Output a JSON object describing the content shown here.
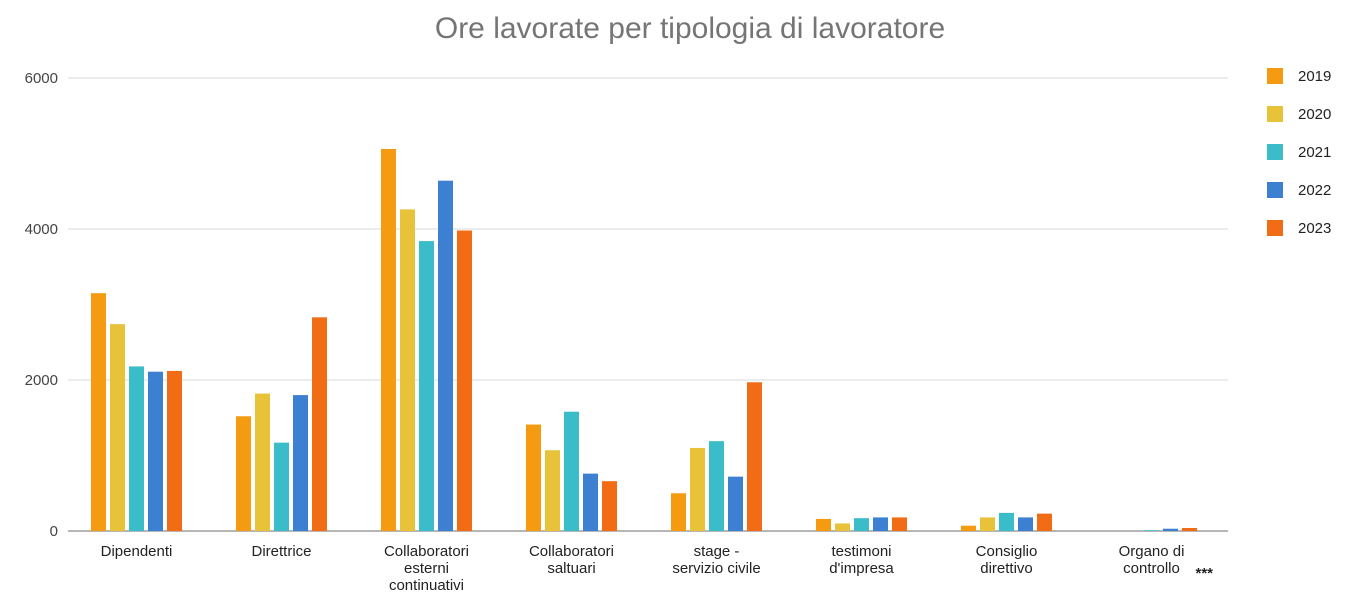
{
  "chart_data": {
    "type": "bar",
    "title": "Ore lavorate per tipologia di lavoratore",
    "categories": [
      [
        "Dipendenti"
      ],
      [
        "Direttrice"
      ],
      [
        "Collaboratori",
        "esterni",
        "continuativi"
      ],
      [
        "Collaboratori",
        "saltuari"
      ],
      [
        "stage -",
        "servizio civile"
      ],
      [
        "testimoni",
        "d'impresa"
      ],
      [
        "Consiglio",
        "direttivo"
      ],
      [
        "Organo di",
        "controllo"
      ]
    ],
    "annotation": "***",
    "ylim": [
      0,
      6000
    ],
    "yticks": [
      0,
      2000,
      4000,
      6000
    ],
    "grid": true,
    "legend_position": "right",
    "series": [
      {
        "name": "2019",
        "color": "#f59b12",
        "values": [
          3150,
          1520,
          5060,
          1410,
          500,
          160,
          70,
          0
        ]
      },
      {
        "name": "2020",
        "color": "#e8c33a",
        "values": [
          2740,
          1820,
          4260,
          1070,
          1100,
          100,
          180,
          0
        ]
      },
      {
        "name": "2021",
        "color": "#3bbcc9",
        "values": [
          2180,
          1170,
          3840,
          1580,
          1190,
          170,
          240,
          10
        ]
      },
      {
        "name": "2022",
        "color": "#3d7fd0",
        "values": [
          2110,
          1800,
          4640,
          760,
          720,
          180,
          180,
          30
        ]
      },
      {
        "name": "2023",
        "color": "#f26b15",
        "values": [
          2120,
          2830,
          3980,
          660,
          1970,
          180,
          230,
          40
        ]
      }
    ]
  }
}
